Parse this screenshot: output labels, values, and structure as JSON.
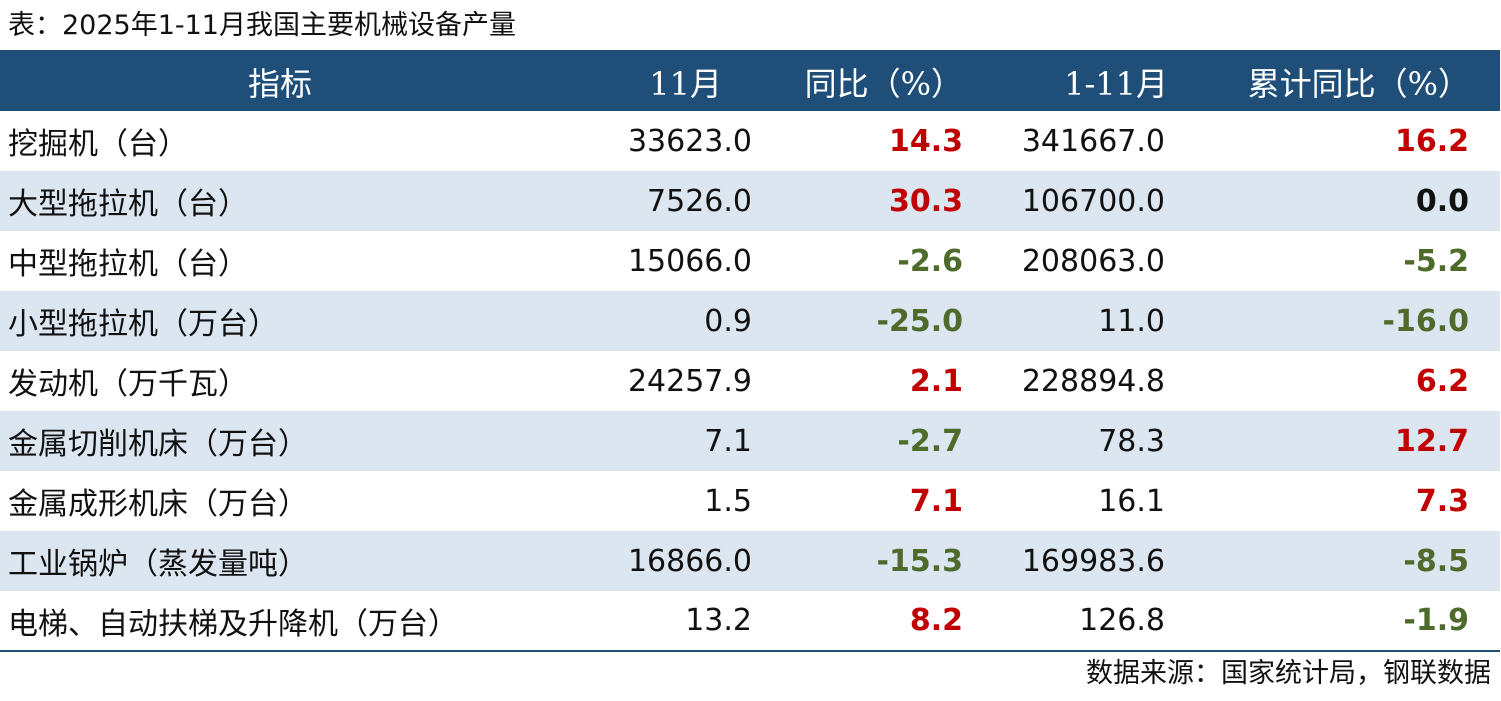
{
  "title": "表：2025年1-11月我国主要机械设备产量",
  "table": {
    "headers": [
      "指标",
      "11月",
      "同比（%）",
      "1-11月",
      "累计同比（%）"
    ],
    "rows": [
      {
        "name": "挖掘机（台）",
        "month": "33623.0",
        "yoy": "14.3",
        "yoy_tone": "red",
        "cum": "341667.0",
        "cum_yoy": "16.2",
        "cum_yoy_tone": "red"
      },
      {
        "name": "大型拖拉机（台）",
        "month": "7526.0",
        "yoy": "30.3",
        "yoy_tone": "red",
        "cum": "106700.0",
        "cum_yoy": "0.0",
        "cum_yoy_tone": "black"
      },
      {
        "name": "中型拖拉机（台）",
        "month": "15066.0",
        "yoy": "-2.6",
        "yoy_tone": "green",
        "cum": "208063.0",
        "cum_yoy": "-5.2",
        "cum_yoy_tone": "green"
      },
      {
        "name": "小型拖拉机（万台）",
        "month": "0.9",
        "yoy": "-25.0",
        "yoy_tone": "green",
        "cum": "11.0",
        "cum_yoy": "-16.0",
        "cum_yoy_tone": "green"
      },
      {
        "name": "发动机（万千瓦）",
        "month": "24257.9",
        "yoy": "2.1",
        "yoy_tone": "red",
        "cum": "228894.8",
        "cum_yoy": "6.2",
        "cum_yoy_tone": "red"
      },
      {
        "name": "金属切削机床（万台）",
        "month": "7.1",
        "yoy": "-2.7",
        "yoy_tone": "green",
        "cum": "78.3",
        "cum_yoy": "12.7",
        "cum_yoy_tone": "red"
      },
      {
        "name": "金属成形机床（万台）",
        "month": "1.5",
        "yoy": "7.1",
        "yoy_tone": "red",
        "cum": "16.1",
        "cum_yoy": "7.3",
        "cum_yoy_tone": "red"
      },
      {
        "name": "工业锅炉（蒸发量吨）",
        "month": "16866.0",
        "yoy": "-15.3",
        "yoy_tone": "green",
        "cum": "169983.6",
        "cum_yoy": "-8.5",
        "cum_yoy_tone": "green"
      },
      {
        "name": "电梯、自动扶梯及升降机（万台）",
        "month": "13.2",
        "yoy": "8.2",
        "yoy_tone": "red",
        "cum": "126.8",
        "cum_yoy": "-1.9",
        "cum_yoy_tone": "green"
      }
    ]
  },
  "source": "数据来源：国家统计局，钢联数据",
  "colors": {
    "header_bg": "#1f4e79",
    "stripe_bg": "#dce6f1",
    "positive": "#c00000",
    "negative": "#4e6b2c"
  }
}
